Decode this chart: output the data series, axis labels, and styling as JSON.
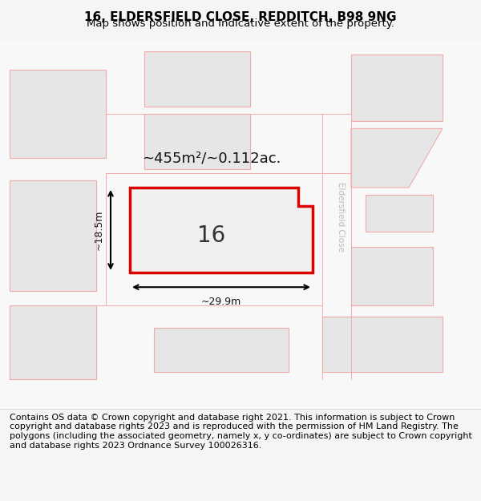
{
  "title_line1": "16, ELDERSFIELD CLOSE, REDDITCH, B98 9NG",
  "title_line2": "Map shows position and indicative extent of the property.",
  "footer_text": "Contains OS data © Crown copyright and database right 2021. This information is subject to Crown copyright and database rights 2023 and is reproduced with the permission of HM Land Registry. The polygons (including the associated geometry, namely x, y co-ordinates) are subject to Crown copyright and database rights 2023 Ordnance Survey 100026316.",
  "area_label": "~455m²/~0.112ac.",
  "number_label": "16",
  "width_label": "~29.9m",
  "height_label": "~18.5m",
  "street_label": "Eldersfield Close",
  "bg_color": "#f5f5f5",
  "map_bg": "#ffffff",
  "plot_color_fill": "#e8e8e8",
  "plot_color_stroke": "#ff0000",
  "other_plots_fill": "#e0e0e0",
  "other_plots_stroke": "#ffaaaa",
  "title_fontsize": 11,
  "footer_fontsize": 8
}
